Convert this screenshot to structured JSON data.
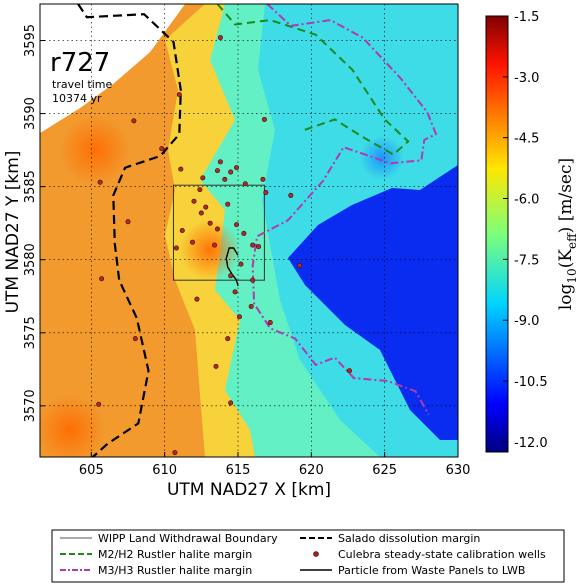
{
  "chart_data": {
    "type": "heatmap",
    "run_id": "r727",
    "travel_time_label": "travel time",
    "travel_time_value": "10374 yr",
    "xlabel": "UTM NAD27 X [km]",
    "ylabel": "UTM NAD27 Y [km]",
    "xlim": [
      601.5,
      630
    ],
    "ylim": [
      3566.5,
      3597.5
    ],
    "x_ticks": [
      605,
      610,
      615,
      620,
      625,
      630
    ],
    "y_ticks": [
      3570,
      3575,
      3580,
      3585,
      3590,
      3595
    ],
    "grid": true,
    "colorbar": {
      "label_prefix": "log",
      "label_sub": "10",
      "label_main": "(K",
      "label_eff": "eff",
      "label_units": ") [m/sec]",
      "range": [
        -12.25,
        -1.5
      ],
      "ticks": [
        "-1.5",
        "-3.0",
        "-4.5",
        "-6.0",
        "-7.5",
        "-9.0",
        "-10.5",
        "-12.0"
      ],
      "tick_values": [
        -1.5,
        -3.0,
        -4.5,
        -6.0,
        -7.5,
        -9.0,
        -10.5,
        -12.0
      ],
      "colormap": "jet"
    },
    "wipp_boundary": {
      "x": [
        610.6,
        616.8
      ],
      "y": [
        3578.6,
        3585.1
      ]
    },
    "salado_margin": [
      [
        604.1,
        3597.5
      ],
      [
        604.7,
        3596.6
      ],
      [
        608.6,
        3596.8
      ],
      [
        610.6,
        3594.9
      ],
      [
        611.1,
        3591.6
      ],
      [
        611.0,
        3588.6
      ],
      [
        609.7,
        3587.1
      ],
      [
        607.3,
        3586.3
      ],
      [
        606.5,
        3584.4
      ],
      [
        606.6,
        3581.1
      ],
      [
        606.9,
        3578.6
      ],
      [
        608.1,
        3576.0
      ],
      [
        608.9,
        3572.4
      ],
      [
        608.2,
        3568.8
      ],
      [
        606.1,
        3567.4
      ],
      [
        605.1,
        3566.5
      ]
    ],
    "m2h2_margin": [
      [
        613.6,
        3597.5
      ],
      [
        614.8,
        3596.1
      ],
      [
        617.2,
        3596.4
      ],
      [
        620.3,
        3595.4
      ],
      [
        622.8,
        3593.0
      ],
      [
        625.0,
        3589.6
      ],
      [
        626.6,
        3588.1
      ],
      [
        625.6,
        3587.2
      ],
      [
        623.5,
        3588.4
      ],
      [
        621.6,
        3589.6
      ],
      [
        619.3,
        3588.8
      ]
    ],
    "m3h3_margin": [
      [
        617.0,
        3597.5
      ],
      [
        618.6,
        3596.0
      ],
      [
        621.3,
        3596.4
      ],
      [
        623.5,
        3595.2
      ],
      [
        626.1,
        3592.4
      ],
      [
        627.9,
        3590.1
      ],
      [
        628.5,
        3588.6
      ],
      [
        627.7,
        3588.2
      ],
      [
        627.5,
        3586.8
      ],
      [
        625.4,
        3586.6
      ],
      [
        622.2,
        3587.7
      ],
      [
        620.8,
        3585.4
      ],
      [
        618.4,
        3582.7
      ],
      [
        616.3,
        3581.6
      ],
      [
        616.0,
        3579.6
      ],
      [
        616.1,
        3577.0
      ],
      [
        617.2,
        3575.3
      ],
      [
        618.9,
        3574.6
      ],
      [
        620.3,
        3572.8
      ],
      [
        621.6,
        3573.3
      ],
      [
        622.9,
        3571.9
      ],
      [
        625.2,
        3571.7
      ],
      [
        627.1,
        3571.0
      ],
      [
        628.0,
        3569.4
      ]
    ],
    "particle_path": [
      [
        615.0,
        3580.3
      ],
      [
        614.7,
        3580.8
      ],
      [
        614.4,
        3580.8
      ],
      [
        614.2,
        3580.1
      ],
      [
        614.3,
        3579.5
      ],
      [
        614.6,
        3579.0
      ],
      [
        614.9,
        3578.6
      ],
      [
        615.0,
        3578.2
      ]
    ],
    "wells": [
      [
        605.6,
        3585.3
      ],
      [
        607.5,
        3582.6
      ],
      [
        609.8,
        3587.6
      ],
      [
        607.9,
        3589.5
      ],
      [
        611.0,
        3591.3
      ],
      [
        613.8,
        3595.2
      ],
      [
        616.8,
        3589.6
      ],
      [
        611.1,
        3586.2
      ],
      [
        612.0,
        3584.0
      ],
      [
        612.6,
        3585.6
      ],
      [
        612.4,
        3584.8
      ],
      [
        612.8,
        3583.6
      ],
      [
        612.5,
        3583.2
      ],
      [
        613.1,
        3582.5
      ],
      [
        613.6,
        3582.1
      ],
      [
        613.4,
        3581.0
      ],
      [
        611.9,
        3581.2
      ],
      [
        611.2,
        3582.0
      ],
      [
        610.8,
        3580.8
      ],
      [
        613.6,
        3586.1
      ],
      [
        613.8,
        3586.7
      ],
      [
        614.1,
        3585.5
      ],
      [
        614.5,
        3586.0
      ],
      [
        614.9,
        3586.3
      ],
      [
        615.5,
        3585.2
      ],
      [
        616.7,
        3585.5
      ],
      [
        616.9,
        3584.6
      ],
      [
        614.3,
        3583.8
      ],
      [
        614.9,
        3582.4
      ],
      [
        615.4,
        3581.8
      ],
      [
        616.0,
        3581.0
      ],
      [
        616.4,
        3580.9
      ],
      [
        615.2,
        3579.7
      ],
      [
        614.5,
        3578.9
      ],
      [
        614.8,
        3577.8
      ],
      [
        616.0,
        3578.6
      ],
      [
        615.9,
        3576.8
      ],
      [
        615.1,
        3576.1
      ],
      [
        614.3,
        3574.6
      ],
      [
        618.6,
        3584.4
      ],
      [
        617.2,
        3575.7
      ],
      [
        605.7,
        3578.7
      ],
      [
        612.2,
        3577.3
      ],
      [
        614.5,
        3570.2
      ],
      [
        608.0,
        3574.6
      ],
      [
        605.5,
        3570.1
      ],
      [
        613.5,
        3572.7
      ],
      [
        619.2,
        3579.6
      ],
      [
        622.6,
        3572.4
      ],
      [
        610.7,
        3566.8
      ]
    ],
    "legend": [
      {
        "label": "WIPP Land Withdrawal Boundary",
        "style": "thin-solid",
        "color": "#555555"
      },
      {
        "label": "Salado dissolution margin",
        "style": "dashed",
        "color": "#000000"
      },
      {
        "label": "M2/H2 Rustler halite margin",
        "style": "dashed",
        "color": "#1a8a1a"
      },
      {
        "label": "Culebra steady-state calibration wells",
        "style": "dot",
        "color": "#a32222"
      },
      {
        "label": "M3/H3 Rustler halite margin",
        "style": "dashdot",
        "color": "#b03ab0"
      },
      {
        "label": "Particle from Waste Panels to LWB",
        "style": "solid",
        "color": "#000000"
      }
    ]
  }
}
